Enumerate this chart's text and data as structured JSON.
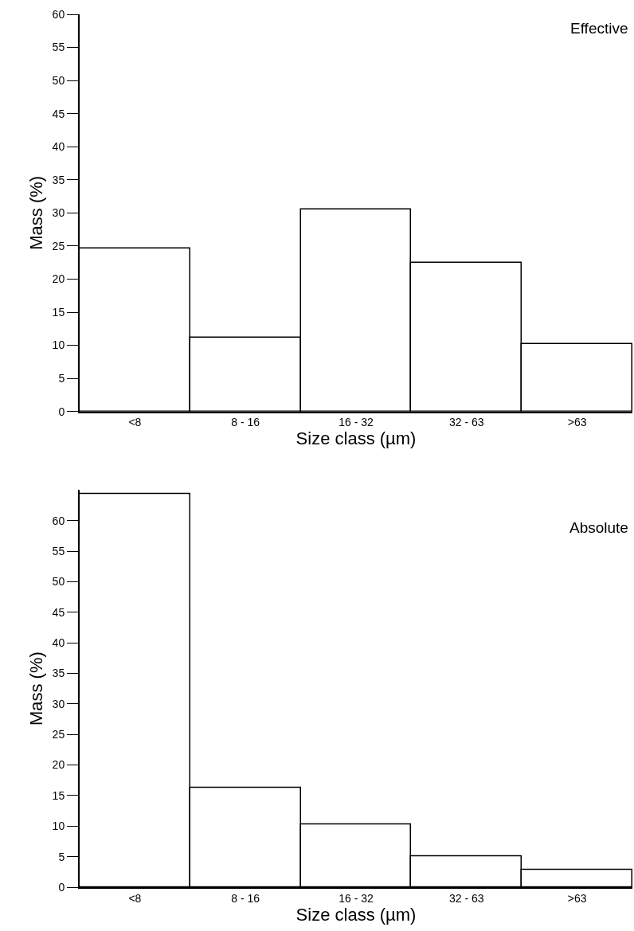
{
  "chart_data": [
    {
      "type": "bar",
      "annotations": [
        "Effective"
      ],
      "xlabel": "Size class (µm)",
      "ylabel": "Mass (%)",
      "categories": [
        "<8",
        "8 - 16",
        "16 - 32",
        "32 - 63",
        ">63"
      ],
      "series": [
        {
          "color": "#ffffff",
          "values": [
            24.6,
            11.2,
            30.5,
            22.5,
            10.2
          ]
        }
      ],
      "ylim": [
        0,
        60
      ],
      "yticks": [
        0,
        5,
        10,
        15,
        20,
        25,
        30,
        35,
        40,
        45,
        50,
        55,
        60
      ]
    },
    {
      "type": "bar",
      "annotations": [
        "Absolute"
      ],
      "xlabel": "Size class (µm)",
      "ylabel": "Mass (%)",
      "categories": [
        "<8",
        "8 - 16",
        "16 - 32",
        "32 - 63",
        ">63"
      ],
      "series": [
        {
          "color": "#ffffff",
          "values": [
            64.3,
            16.3,
            10.3,
            5.1,
            2.8
          ]
        }
      ],
      "ylim": [
        0,
        65
      ],
      "yticks": [
        0,
        5,
        10,
        15,
        20,
        25,
        30,
        35,
        40,
        45,
        50,
        55,
        60
      ]
    }
  ]
}
